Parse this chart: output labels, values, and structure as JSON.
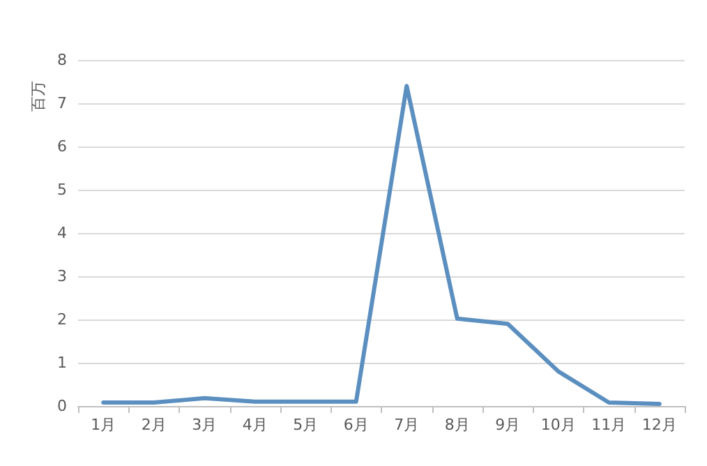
{
  "chart_data": {
    "type": "line",
    "ylabel": "百万",
    "categories": [
      "1月",
      "2月",
      "3月",
      "4月",
      "5月",
      "6月",
      "7月",
      "8月",
      "9月",
      "10月",
      "11月",
      "12月"
    ],
    "series": [
      {
        "color": "#5b8fc0",
        "values": [
          0.08,
          0.08,
          0.18,
          0.1,
          0.1,
          0.1,
          7.4,
          2.02,
          1.9,
          0.8,
          0.08,
          0.05
        ]
      }
    ],
    "ylim": [
      0,
      8
    ],
    "yticks": [
      0,
      1,
      2,
      3,
      4,
      5,
      6,
      7,
      8
    ],
    "grid": "y",
    "marker": "none",
    "line_style": "solid"
  }
}
